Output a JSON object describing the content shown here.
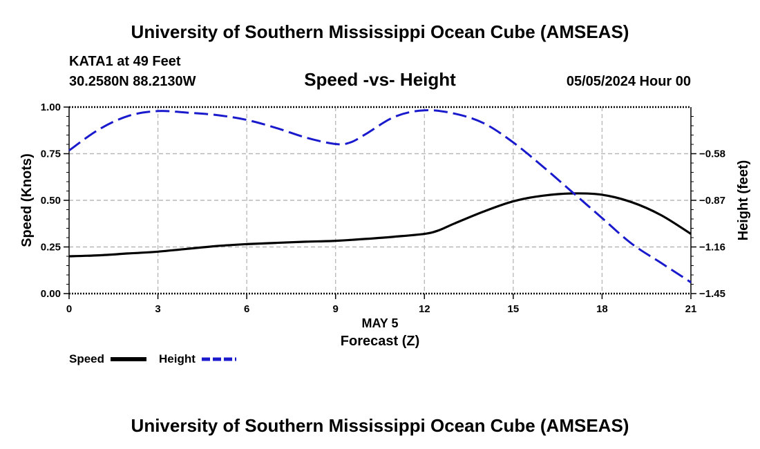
{
  "header": {
    "title": "University of Southern Mississippi Ocean Cube (AMSEAS)",
    "station": "KATA1 at 49 Feet",
    "coords": "30.2580N  88.2130W",
    "subtitle": "Speed -vs- Height",
    "date": "05/05/2024 Hour 00"
  },
  "footer": {
    "title": "University of Southern Mississippi Ocean Cube (AMSEAS)"
  },
  "chart_data": {
    "type": "line",
    "title": "Speed -vs- Height",
    "xlabel_date": "MAY 5",
    "xlabel": "Forecast (Z)",
    "ylabel": "Speed (Knots)",
    "y2label": "Height (feet)",
    "xlim": [
      0,
      21
    ],
    "ylim": [
      0,
      1
    ],
    "y2lim": [
      -1.45,
      -0.29
    ],
    "grid": true,
    "x_ticks": [
      0,
      3,
      6,
      9,
      12,
      15,
      18,
      21
    ],
    "x_tick_labels": [
      "0",
      "3",
      "6",
      "9",
      "12",
      "15",
      "18",
      "21"
    ],
    "y_ticks": [
      0,
      0.25,
      0.5,
      0.75,
      1.0
    ],
    "y_tick_labels": [
      "0.00",
      "0.25",
      "0.50",
      "0.75",
      "1.00"
    ],
    "y2_ticks": [
      -1.45,
      -1.16,
      -0.87,
      -0.58
    ],
    "y2_tick_labels": [
      "−1.45",
      "−1.16",
      "−0.87",
      "−0.58"
    ],
    "legend_position": "bottom-left",
    "series": [
      {
        "name": "Speed",
        "axis": "left",
        "color": "#000000",
        "style": "solid",
        "x": [
          0,
          1,
          2,
          3,
          4,
          5,
          6,
          7,
          8,
          9,
          10,
          11,
          12,
          12.5,
          13,
          14,
          15,
          16,
          17,
          18,
          19,
          20,
          21
        ],
        "values": [
          0.2,
          0.205,
          0.215,
          0.225,
          0.24,
          0.255,
          0.265,
          0.272,
          0.278,
          0.283,
          0.293,
          0.305,
          0.32,
          0.34,
          0.375,
          0.44,
          0.495,
          0.525,
          0.537,
          0.53,
          0.49,
          0.42,
          0.32
        ]
      },
      {
        "name": "Height",
        "axis": "right",
        "color": "#1a1acd",
        "style": "dashed",
        "x": [
          0,
          1,
          2,
          3,
          4,
          5,
          6,
          7,
          8,
          9,
          9.5,
          10,
          11,
          12,
          13,
          14,
          15,
          16,
          17,
          18,
          19,
          20,
          21
        ],
        "values": [
          -0.56,
          -0.43,
          -0.345,
          -0.315,
          -0.325,
          -0.34,
          -0.37,
          -0.42,
          -0.48,
          -0.52,
          -0.51,
          -0.46,
          -0.35,
          -0.31,
          -0.33,
          -0.39,
          -0.51,
          -0.66,
          -0.82,
          -0.98,
          -1.14,
          -1.26,
          -1.38
        ]
      }
    ]
  }
}
